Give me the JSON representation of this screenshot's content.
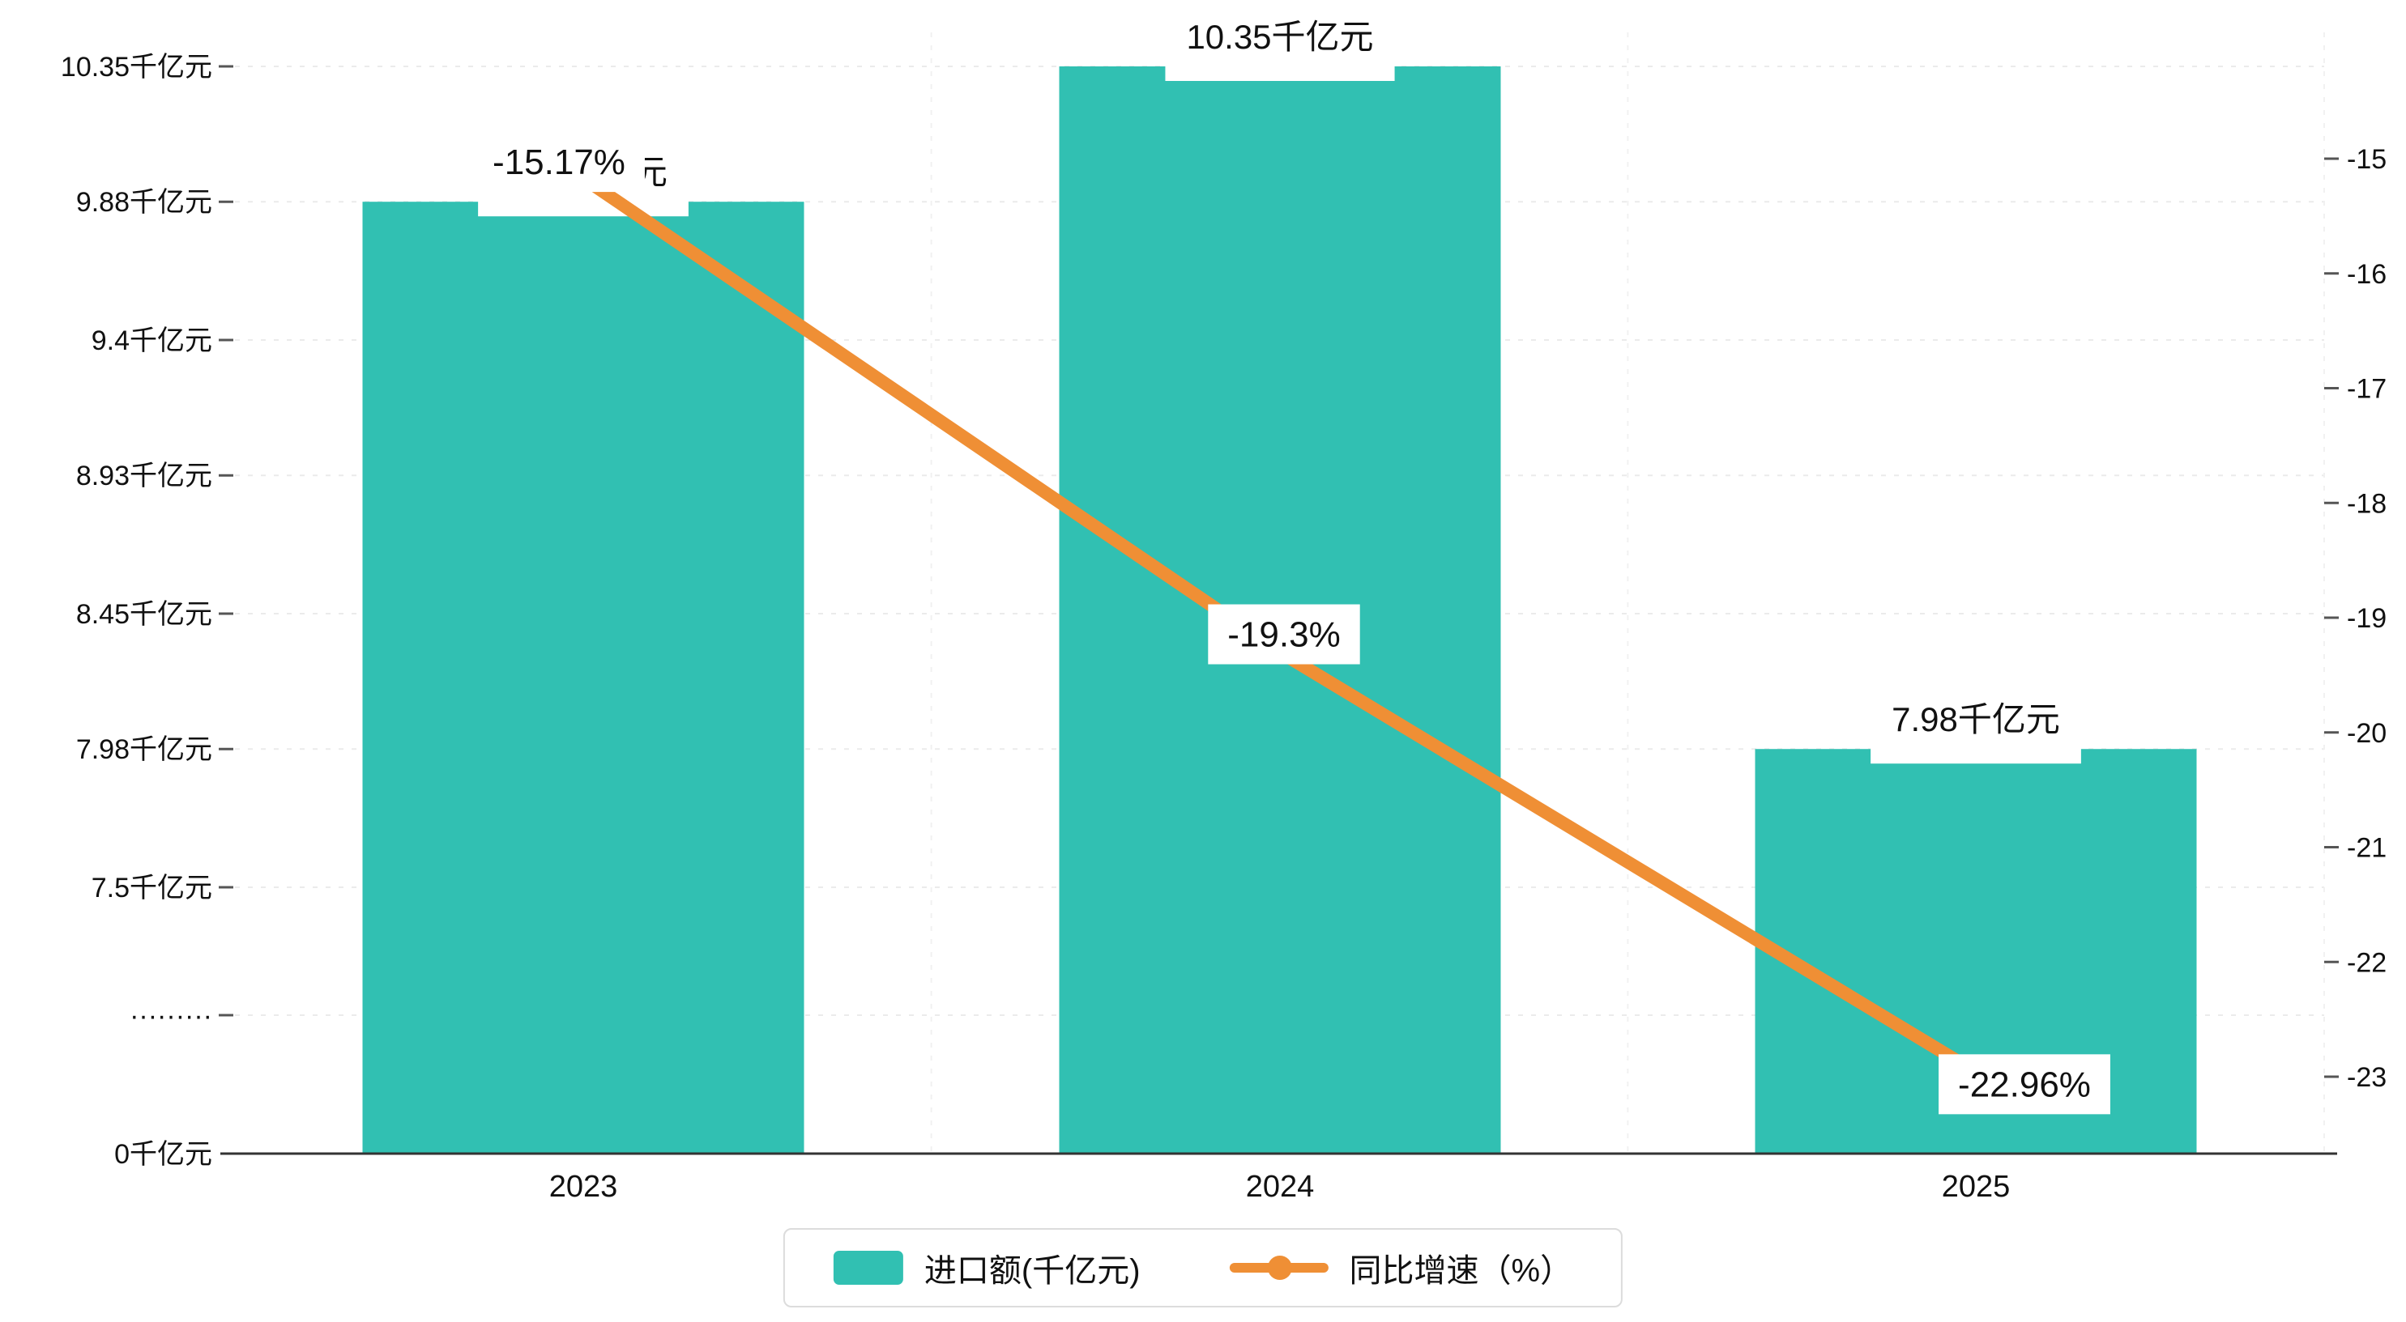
{
  "chart_data": {
    "type": "bar+line",
    "categories": [
      "2023",
      "2024",
      "2025"
    ],
    "series": [
      {
        "name": "进口额(千亿元)",
        "type": "bar",
        "axis": "left",
        "values": [
          9.88,
          10.35,
          7.98
        ],
        "labels": [
          "9.88千亿元",
          "10.35千亿元",
          "7.98千亿元"
        ],
        "color": "#31c0b2"
      },
      {
        "name": "同比增速（%）",
        "type": "line",
        "axis": "right",
        "values": [
          -15.17,
          -19.3,
          -22.96
        ],
        "labels": [
          "-15.17%",
          "-19.3%",
          "-22.96%"
        ],
        "color": "#ef8f35"
      }
    ],
    "left_axis": {
      "tick_values": [
        10.35,
        9.88,
        9.4,
        8.93,
        8.45,
        7.98,
        7.5
      ],
      "tick_labels": [
        "10.35千亿元",
        "9.88千亿元",
        "9.4千亿元",
        "8.93千亿元",
        "8.45千亿元",
        "7.98千亿元",
        "7.5千亿元"
      ],
      "break_label": "·········",
      "zero_label": "0千亿元",
      "range_top": 10.35,
      "range_bottom": 7.5
    },
    "right_axis": {
      "tick_values": [
        -15,
        -16,
        -17,
        -18,
        -19,
        -20,
        -21,
        -22,
        -23
      ],
      "tick_labels": [
        "-15",
        "-16",
        "-17",
        "-18",
        "-19",
        "-20",
        "-21",
        "-22",
        "-23"
      ]
    },
    "grid": true,
    "legend_position": "bottom"
  },
  "legend": {
    "items": [
      {
        "label": "进口额(千亿元)",
        "color": "#31c0b2",
        "marker": "bar"
      },
      {
        "label": "同比增速（%）",
        "color": "#ef8f35",
        "marker": "line"
      }
    ]
  },
  "colors": {
    "bar": "#31c0b2",
    "line": "#ef8f35",
    "grid": "#ebebeb",
    "grid_vertical": "#f1f1f1",
    "axis": "#333333",
    "tick": "#555555",
    "text": "#111111",
    "label_bg": "#ffffff",
    "legend_border": "#dcdcdc"
  }
}
